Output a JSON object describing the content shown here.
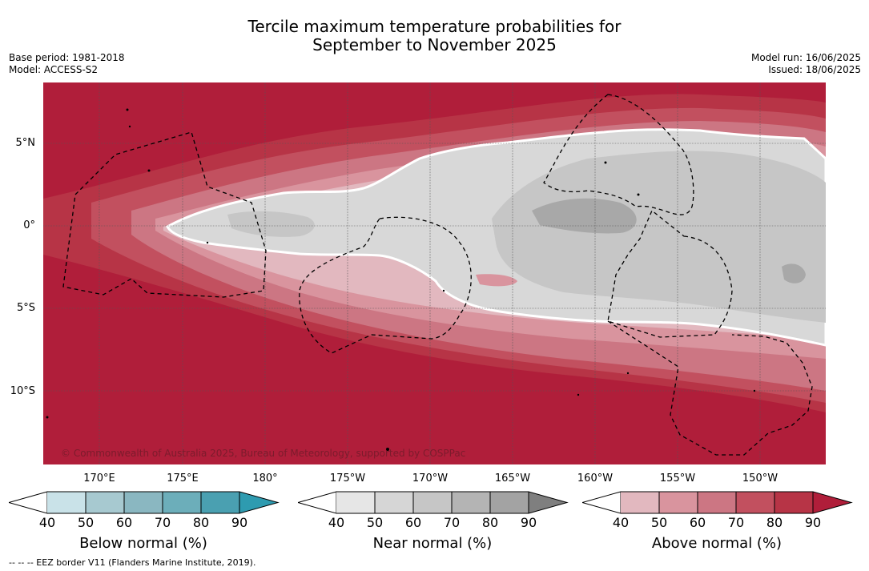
{
  "title_line1": "Tercile maximum temperature probabilities for",
  "title_line2": "September to November 2025",
  "meta_left": {
    "base_period": "Base period: 1981-2018",
    "model": "Model: ACCESS-S2"
  },
  "meta_right": {
    "model_run": "Model run: 16/06/2025",
    "issued": "Issued: 18/06/2025"
  },
  "lat_labels": [
    "5°N",
    "0°",
    "5°S",
    "10°S"
  ],
  "lon_labels": [
    "170°E",
    "175°E",
    "180°",
    "175°W",
    "170°W",
    "165°W",
    "160°W",
    "155°W",
    "150°W"
  ],
  "copyright": "© Commonwealth of Australia 2025, Bureau of Meteorology, supported by COSPPac",
  "colorbars": [
    {
      "title": "Below normal (%)",
      "ticks": [
        "40",
        "50",
        "60",
        "70",
        "80",
        "90"
      ],
      "colors": [
        "#c9e2e8",
        "#a7c9d0",
        "#8ab7c1",
        "#6caeba",
        "#4aa0b1"
      ],
      "extend_color": "#2e9bb0"
    },
    {
      "title": "Near normal (%)",
      "ticks": [
        "40",
        "50",
        "60",
        "70",
        "80",
        "90"
      ],
      "colors": [
        "#e6e6e6",
        "#d6d6d6",
        "#c6c6c6",
        "#b4b4b4",
        "#a3a3a3"
      ],
      "extend_color": "#7f7f7f"
    },
    {
      "title": "Above normal (%)",
      "ticks": [
        "40",
        "50",
        "60",
        "70",
        "80",
        "90"
      ],
      "colors": [
        "#e2b8bf",
        "#d9949e",
        "#cc7683",
        "#c2505f",
        "#b73446"
      ],
      "extend_color": "#b01e3a"
    }
  ],
  "footer": "-- -- -- EEZ border V11 (Flanders Marine Institute, 2019)."
}
